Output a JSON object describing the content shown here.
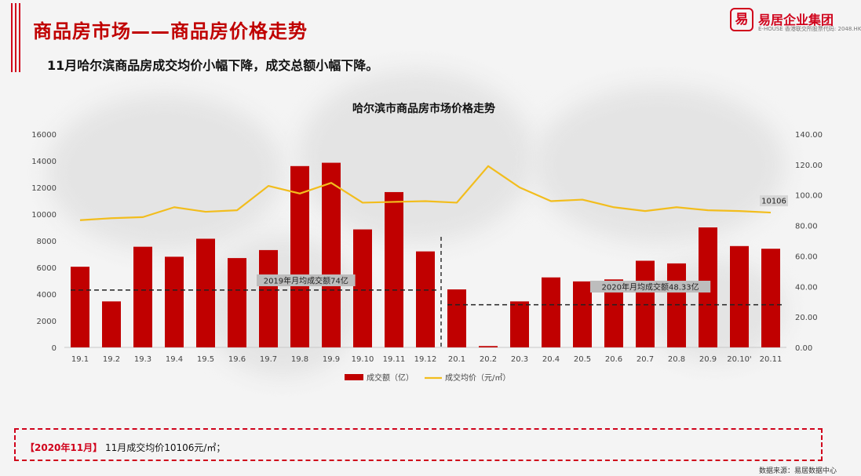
{
  "header": {
    "title": "商品房市场——商品房价格走势",
    "subtitle": "11月哈尔滨商品房成交均价小幅下降，成交总额小幅下降。"
  },
  "logo": {
    "mark": "易",
    "name": "易居企业集团",
    "tagline": "E-HOUSE 香港联交所股票代码: 2048.HK"
  },
  "chart_data": {
    "type": "bar",
    "title": "哈尔滨市商品房市场价格走势",
    "categories": [
      "19.1",
      "19.2",
      "19.3",
      "19.4",
      "19.5",
      "19.6",
      "19.7",
      "19.8",
      "19.9",
      "19.10",
      "19.11",
      "19.12",
      "20.1",
      "20.2",
      "20.3",
      "20.4",
      "20.5",
      "20.6",
      "20.7",
      "20.8",
      "20.9",
      "20.10'",
      "20.11"
    ],
    "series": [
      {
        "name": "成交额（亿）",
        "type": "bar",
        "axis": "left",
        "color": "#c00000",
        "values": [
          6050,
          3450,
          7550,
          6800,
          8150,
          6700,
          7300,
          13600,
          13850,
          8850,
          11650,
          7200,
          4350,
          100,
          3450,
          5250,
          4950,
          5100,
          6500,
          6300,
          9000,
          7600,
          7400
        ]
      },
      {
        "name": "成交均价（元/㎡）",
        "type": "line",
        "axis": "right",
        "color": "#f2bd1d",
        "values": [
          83.5,
          84.8,
          85.5,
          92.0,
          89.0,
          90.0,
          106.0,
          101.0,
          108.0,
          95.0,
          95.5,
          96.0,
          95.0,
          119.0,
          105.0,
          96.0,
          97.0,
          92.0,
          89.5,
          92.0,
          90.0,
          89.5,
          88.5
        ]
      }
    ],
    "y_left": {
      "lim": [
        0,
        16000
      ],
      "ticks": [
        "0",
        "2000",
        "4000",
        "6000",
        "8000",
        "10000",
        "12000",
        "14000",
        "16000"
      ]
    },
    "y_right": {
      "lim": [
        0,
        140
      ],
      "ticks": [
        "0.00",
        "20.00",
        "40.00",
        "60.00",
        "80.00",
        "100.00",
        "120.00",
        "140.00"
      ]
    },
    "annotations": [
      {
        "text": "2019年月均成交额74亿",
        "value": 4300,
        "from": "19.1",
        "to": "19.12"
      },
      {
        "text": "2020年月均成交额48.33亿",
        "value": 3200,
        "from": "20.1",
        "to": "20.11"
      }
    ],
    "last_point_label": "10106",
    "legend_position": "bottom",
    "grid": false
  },
  "note": {
    "tag": "【2020年11月】",
    "text": "11月成交均价10106元/㎡；"
  },
  "source": "数据来源：易居数据中心",
  "colors": {
    "accent": "#c00000",
    "line": "#f2bd1d"
  }
}
